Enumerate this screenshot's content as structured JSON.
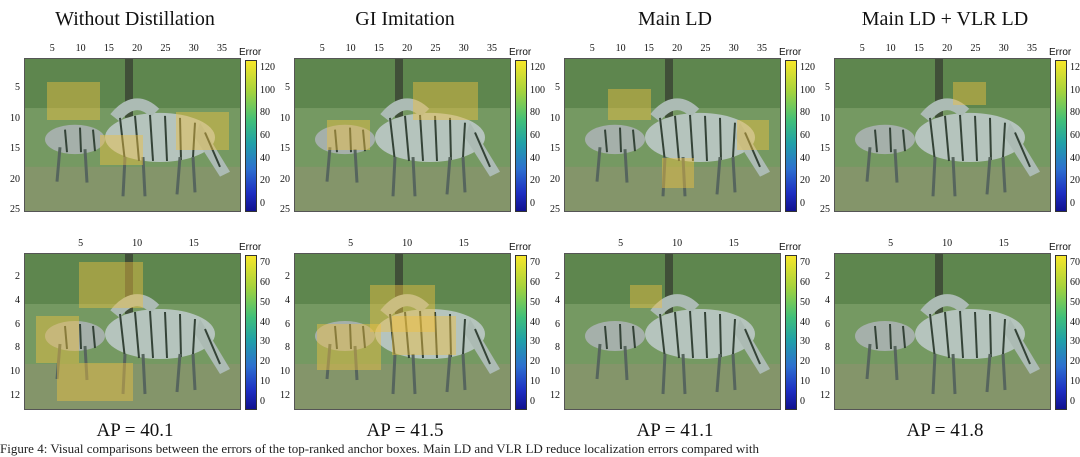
{
  "columns": [
    {
      "title": "Without Distillation",
      "ap": "AP = 40.1"
    },
    {
      "title": "GI Imitation",
      "ap": "AP = 41.5"
    },
    {
      "title": "Main LD",
      "ap": "AP = 41.1"
    },
    {
      "title": "Main LD + VLR LD",
      "ap": "AP = 41.8"
    }
  ],
  "colorbar_label": "Error",
  "row1": {
    "xticks": [
      "5",
      "10",
      "15",
      "20",
      "25",
      "30",
      "35"
    ],
    "yticks": [
      "5",
      "10",
      "15",
      "20",
      "25"
    ],
    "cticks": [
      "120",
      "100",
      "80",
      "60",
      "40",
      "20",
      "0"
    ]
  },
  "row2": {
    "xticks": [
      "5",
      "10",
      "15"
    ],
    "yticks": [
      "2",
      "4",
      "6",
      "8",
      "10",
      "12"
    ],
    "cticks": [
      "70",
      "60",
      "50",
      "40",
      "30",
      "20",
      "10",
      "0"
    ]
  },
  "caption": "Figure 4: Visual comparisons between the errors of the top-ranked anchor boxes. Main LD and VLR LD reduce localization errors compared with"
}
